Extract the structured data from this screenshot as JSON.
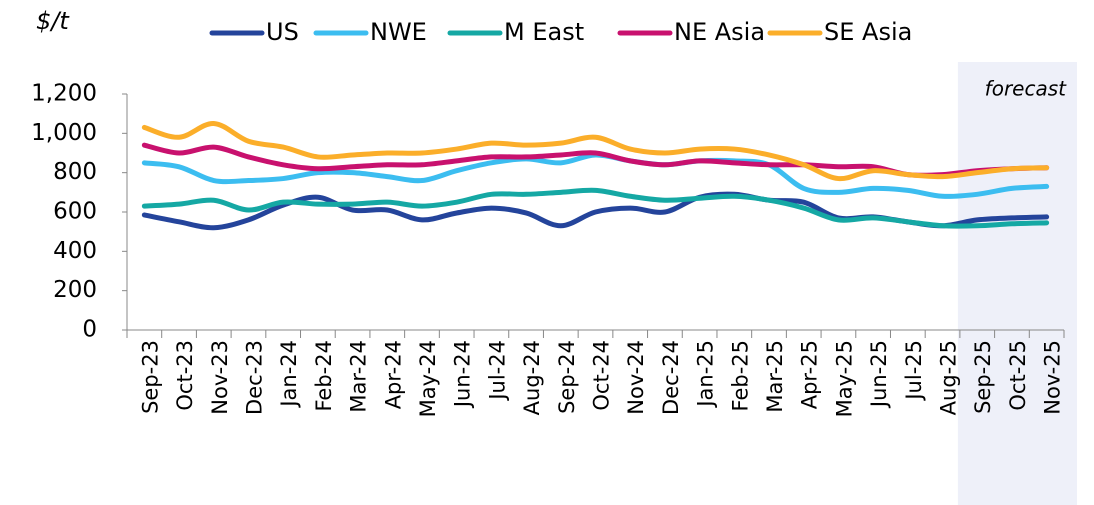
{
  "chart_data": {
    "type": "line",
    "ylabel": "$/t",
    "categories": [
      "Sep-23",
      "Oct-23",
      "Nov-23",
      "Dec-23",
      "Jan-24",
      "Feb-24",
      "Mar-24",
      "Apr-24",
      "May-24",
      "Jun-24",
      "Jul-24",
      "Aug-24",
      "Sep-24",
      "Oct-24",
      "Nov-24",
      "Dec-24",
      "Jan-25",
      "Feb-25",
      "Mar-25",
      "Apr-25",
      "May-25",
      "Jun-25",
      "Jul-25",
      "Aug-25",
      "Sep-25",
      "Oct-25",
      "Nov-25"
    ],
    "series": [
      {
        "name": "US",
        "color": "#24449b",
        "values": [
          585,
          550,
          520,
          560,
          635,
          675,
          610,
          610,
          560,
          595,
          620,
          595,
          530,
          600,
          620,
          600,
          675,
          690,
          660,
          650,
          570,
          575,
          550,
          530,
          560,
          570,
          575
        ]
      },
      {
        "name": "NWE",
        "color": "#3cbdf0",
        "values": [
          850,
          830,
          760,
          760,
          770,
          800,
          800,
          780,
          760,
          810,
          850,
          870,
          850,
          890,
          860,
          840,
          860,
          860,
          840,
          720,
          700,
          720,
          710,
          680,
          690,
          720,
          730
        ]
      },
      {
        "name": "M East",
        "color": "#15a8a4",
        "values": [
          630,
          640,
          660,
          610,
          650,
          640,
          640,
          650,
          630,
          650,
          690,
          690,
          700,
          710,
          680,
          660,
          670,
          680,
          660,
          620,
          560,
          570,
          550,
          530,
          530,
          540,
          545
        ]
      },
      {
        "name": "NE Asia",
        "color": "#c8116e",
        "values": [
          940,
          900,
          930,
          880,
          840,
          820,
          830,
          840,
          840,
          860,
          880,
          880,
          890,
          900,
          860,
          840,
          860,
          850,
          840,
          840,
          830,
          830,
          790,
          790,
          810,
          820,
          825
        ]
      },
      {
        "name": "SE Asia",
        "color": "#fbae2a",
        "values": [
          1030,
          980,
          1050,
          960,
          930,
          880,
          890,
          900,
          900,
          920,
          950,
          940,
          950,
          980,
          920,
          900,
          920,
          920,
          890,
          840,
          770,
          810,
          790,
          780,
          800,
          820,
          825
        ]
      }
    ],
    "ylim": [
      0,
      1200
    ],
    "yticks": [
      0,
      200,
      400,
      600,
      800,
      {
        "value": 1000,
        "label": "1,000"
      },
      {
        "value": 1200,
        "label": "1,200"
      }
    ],
    "annotation": {
      "text": "forecast",
      "from": "Sep-25"
    }
  }
}
